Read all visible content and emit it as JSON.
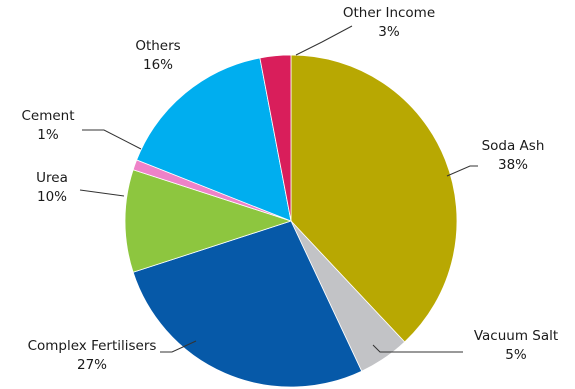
{
  "chart_data": {
    "type": "pie",
    "title": "",
    "legend": "none",
    "start_angle_deg": 0,
    "direction": "clockwise",
    "slices": [
      {
        "id": "soda-ash",
        "name": "Soda Ash",
        "value": 38,
        "label": "38%",
        "color": "#b8a802"
      },
      {
        "id": "vacuum-salt",
        "name": "Vacuum Salt",
        "value": 5,
        "label": "5%",
        "color": "#c2c3c6"
      },
      {
        "id": "complex-fertilisers",
        "name": "Complex Fertilisers",
        "value": 27,
        "label": "27%",
        "color": "#0659a8"
      },
      {
        "id": "urea",
        "name": "Urea",
        "value": 10,
        "label": "10%",
        "color": "#8dc63f"
      },
      {
        "id": "cement",
        "name": "Cement",
        "value": 1,
        "label": "1%",
        "color": "#ee82c8"
      },
      {
        "id": "others",
        "name": "Others",
        "value": 16,
        "label": "16%",
        "color": "#00aeef"
      },
      {
        "id": "other-income",
        "name": "Other Income",
        "value": 3,
        "label": "3%",
        "color": "#d91e5b"
      }
    ]
  }
}
